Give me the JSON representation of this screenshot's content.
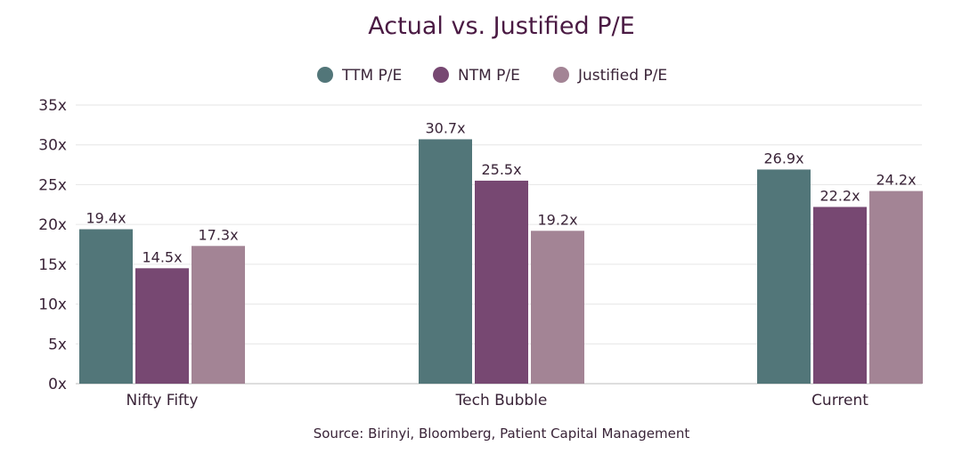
{
  "chart_data": {
    "type": "bar",
    "title": "Actual vs. Justified P/E",
    "categories": [
      "Nifty Fifty",
      "Tech Bubble",
      "Current"
    ],
    "series": [
      {
        "name": "TTM P/E",
        "color": "#527679",
        "values": [
          19.4,
          30.7,
          26.9
        ],
        "labels": [
          "19.4x",
          "30.7x",
          "26.9x"
        ]
      },
      {
        "name": "NTM P/E",
        "color": "#774872",
        "values": [
          14.5,
          25.5,
          22.2
        ],
        "labels": [
          "14.5x",
          "25.5x",
          "22.2x"
        ]
      },
      {
        "name": "Justified P/E",
        "color": "#a38495",
        "values": [
          17.3,
          19.2,
          24.2
        ],
        "labels": [
          "17.3x",
          "19.2x",
          "24.2x"
        ]
      }
    ],
    "yticks": [
      0,
      5,
      10,
      15,
      20,
      25,
      30,
      35
    ],
    "ytick_labels": [
      "0x",
      "5x",
      "10x",
      "15x",
      "20x",
      "25x",
      "30x",
      "35x"
    ],
    "ylim": [
      0,
      35
    ],
    "xlabel": "",
    "ylabel": "",
    "grid": true,
    "legend": "top-center"
  },
  "source": "Source: Birinyi, Bloomberg, Patient Capital Management"
}
